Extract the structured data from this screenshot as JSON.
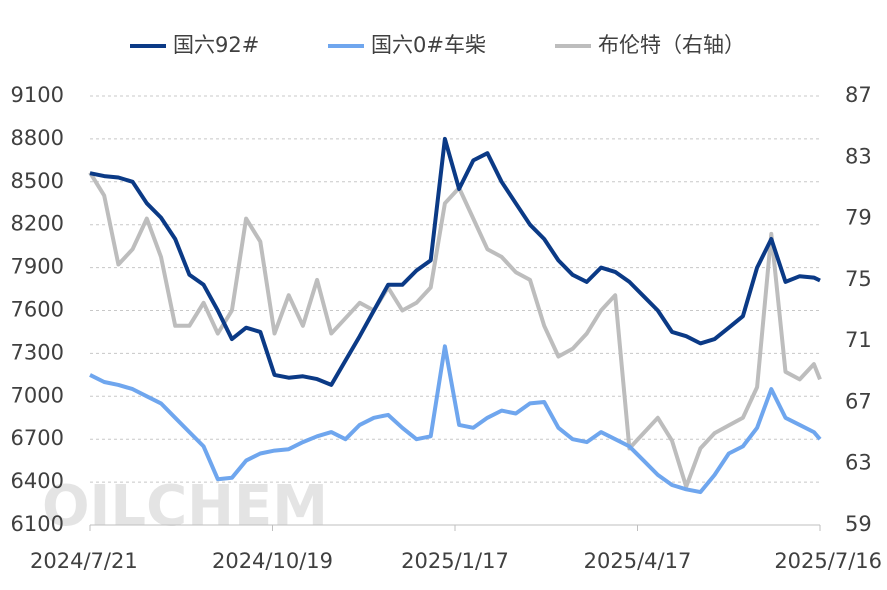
{
  "chart_data": {
    "type": "line",
    "watermark": "OILCHEM",
    "x": [
      "2024/7/21",
      "2024/7/28",
      "2024/8/4",
      "2024/8/11",
      "2024/8/18",
      "2024/8/25",
      "2024/9/1",
      "2024/9/8",
      "2024/9/15",
      "2024/9/22",
      "2024/9/29",
      "2024/10/6",
      "2024/10/13",
      "2024/10/20",
      "2024/10/27",
      "2024/11/3",
      "2024/11/10",
      "2024/11/17",
      "2024/11/24",
      "2024/12/1",
      "2024/12/8",
      "2024/12/15",
      "2024/12/22",
      "2024/12/29",
      "2025/1/5",
      "2025/1/12",
      "2025/1/19",
      "2025/1/26",
      "2025/2/2",
      "2025/2/9",
      "2025/2/16",
      "2025/2/23",
      "2025/3/2",
      "2025/3/9",
      "2025/3/16",
      "2025/3/23",
      "2025/3/30",
      "2025/4/6",
      "2025/4/13",
      "2025/4/20",
      "2025/4/27",
      "2025/5/4",
      "2025/5/11",
      "2025/5/18",
      "2025/5/25",
      "2025/6/1",
      "2025/6/8",
      "2025/6/15",
      "2025/6/22",
      "2025/6/29",
      "2025/7/6",
      "2025/7/13",
      "2025/7/16"
    ],
    "xlim": [
      "2024/7/21",
      "2025/7/16"
    ],
    "xticks": [
      "2024/7/21",
      "2024/10/19",
      "2025/1/17",
      "2025/4/17",
      "2025/7/16"
    ],
    "ylim": [
      6100,
      9100
    ],
    "yticks": [
      6100,
      6400,
      6700,
      7000,
      7300,
      7600,
      7900,
      8200,
      8500,
      8800,
      9100
    ],
    "y2lim": [
      59,
      87
    ],
    "y2ticks": [
      59,
      63,
      67,
      71,
      75,
      79,
      83,
      87
    ],
    "grid": true,
    "series": [
      {
        "name": "国六92#",
        "color": "#0b3a86",
        "values": [
          8560,
          8540,
          8530,
          8500,
          8350,
          8250,
          8100,
          7850,
          7780,
          7600,
          7400,
          7480,
          7450,
          7150,
          7130,
          7140,
          7120,
          7080,
          7250,
          7420,
          7600,
          7780,
          7780,
          7880,
          7950,
          8800,
          8450,
          8650,
          8700,
          8500,
          8350,
          8200,
          8100,
          7950,
          7850,
          7800,
          7900,
          7870,
          7800,
          7700,
          7600,
          7450,
          7420,
          7370,
          7400,
          7480,
          7560,
          7900,
          8100,
          7800,
          7840,
          7830,
          7810
        ]
      },
      {
        "name": "国六0#车柴",
        "color": "#6fa6ee",
        "values": [
          7150,
          7100,
          7080,
          7050,
          7000,
          6950,
          6850,
          6750,
          6650,
          6420,
          6430,
          6550,
          6600,
          6620,
          6630,
          6680,
          6720,
          6750,
          6700,
          6800,
          6850,
          6870,
          6780,
          6700,
          6720,
          7350,
          6800,
          6780,
          6850,
          6900,
          6880,
          6950,
          6960,
          6780,
          6700,
          6680,
          6750,
          6700,
          6650,
          6550,
          6450,
          6380,
          6350,
          6330,
          6450,
          6600,
          6650,
          6780,
          7050,
          6850,
          6800,
          6750,
          6700
        ]
      },
      {
        "name": "布伦特（右轴）",
        "color": "#bdbdbd",
        "axis": "y2",
        "values": [
          82,
          80.5,
          76,
          77,
          79,
          76.5,
          72,
          72,
          73.5,
          71.5,
          73,
          79,
          77.5,
          71.5,
          74,
          72,
          75,
          71.5,
          72.5,
          73.5,
          73,
          74.5,
          73,
          73.5,
          74.5,
          80,
          81,
          79,
          77,
          76.5,
          75.5,
          75,
          72,
          70,
          70.5,
          71.5,
          73,
          74,
          64,
          65,
          66,
          64.5,
          61.5,
          64,
          65,
          65.5,
          66,
          68,
          78,
          69,
          68.5,
          69.5,
          68.5
        ]
      }
    ]
  }
}
